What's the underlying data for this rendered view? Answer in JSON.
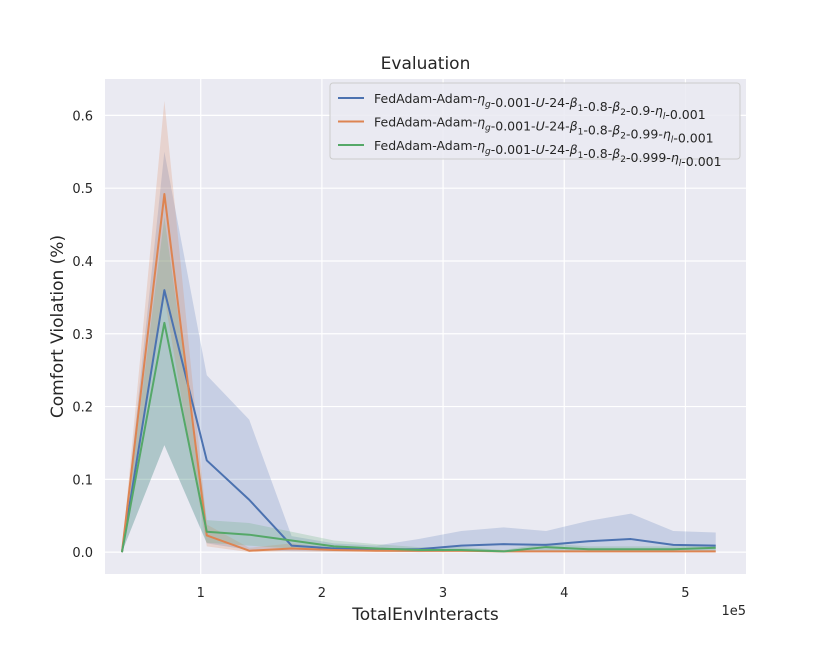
{
  "chart_data": {
    "type": "line",
    "title": "Evaluation",
    "xlabel": "TotalEnvInteracts",
    "ylabel": "Comfort Violation (%)",
    "x_offset_label": "1e5",
    "xlim": [
      0.21,
      5.5
    ],
    "ylim": [
      -0.03,
      0.65
    ],
    "xticks": [
      1,
      2,
      3,
      4,
      5
    ],
    "xtick_labels": [
      "1",
      "2",
      "3",
      "4",
      "5"
    ],
    "yticks": [
      0.0,
      0.1,
      0.2,
      0.3,
      0.4,
      0.5,
      0.6
    ],
    "ytick_labels": [
      "0.0",
      "0.1",
      "0.2",
      "0.3",
      "0.4",
      "0.5",
      "0.6"
    ],
    "grid": true,
    "legend_position": "upper-right",
    "x": [
      0.35,
      0.7,
      1.05,
      1.4,
      1.75,
      2.1,
      2.45,
      2.8,
      3.15,
      3.5,
      3.85,
      4.2,
      4.55,
      4.9,
      5.25
    ],
    "series": [
      {
        "name": "FedAdam-Adam-η_g-0.001-U-24-β_1-0.8-β_2-0.9-η_l-0.001",
        "color": "#4c72b0",
        "values": [
          0.0,
          0.36,
          0.126,
          0.072,
          0.009,
          0.005,
          0.004,
          0.004,
          0.009,
          0.011,
          0.01,
          0.015,
          0.018,
          0.01,
          0.009
        ],
        "upper": [
          0.0,
          0.55,
          0.243,
          0.182,
          0.022,
          0.012,
          0.009,
          0.018,
          0.029,
          0.034,
          0.029,
          0.043,
          0.053,
          0.029,
          0.027
        ],
        "lower": [
          0.0,
          0.147,
          0.012,
          0.003,
          0.001,
          0.001,
          0.001,
          0.0,
          0.001,
          0.001,
          0.001,
          0.001,
          0.001,
          0.001,
          0.001
        ]
      },
      {
        "name": "FedAdam-Adam-η_g-0.001-U-24-β_1-0.8-β_2-0.99-η_l-0.001",
        "color": "#dd8452",
        "values": [
          0.0,
          0.492,
          0.023,
          0.002,
          0.005,
          0.003,
          0.002,
          0.002,
          0.002,
          0.001,
          0.001,
          0.001,
          0.001,
          0.001,
          0.001
        ],
        "upper": [
          0.0,
          0.62,
          0.038,
          0.006,
          0.012,
          0.006,
          0.004,
          0.004,
          0.004,
          0.003,
          0.002,
          0.002,
          0.002,
          0.002,
          0.002
        ],
        "lower": [
          0.0,
          0.35,
          0.008,
          0.0,
          0.001,
          0.0,
          0.0,
          0.0,
          0.0,
          0.0,
          0.0,
          0.0,
          0.0,
          0.0,
          0.0
        ]
      },
      {
        "name": "FedAdam-Adam-η_g-0.001-U-24-β_1-0.8-β_2-0.999-η_l-0.001",
        "color": "#55a868",
        "values": [
          0.0,
          0.315,
          0.028,
          0.024,
          0.016,
          0.008,
          0.005,
          0.003,
          0.003,
          0.001,
          0.007,
          0.004,
          0.004,
          0.004,
          0.006
        ],
        "upper": [
          0.0,
          0.46,
          0.044,
          0.04,
          0.028,
          0.016,
          0.011,
          0.007,
          0.007,
          0.003,
          0.012,
          0.008,
          0.008,
          0.008,
          0.01
        ],
        "lower": [
          0.0,
          0.147,
          0.013,
          0.009,
          0.005,
          0.002,
          0.001,
          0.0,
          0.0,
          0.0,
          0.002,
          0.001,
          0.001,
          0.001,
          0.002
        ]
      }
    ],
    "legend_entries": [
      {
        "prefix": "FedAdam-Adam-",
        "parts": [
          [
            "η",
            "g"
          ],
          "-0.001-",
          [
            "U",
            ""
          ],
          "-24-",
          [
            "β",
            "1"
          ],
          "-0.8-",
          [
            "β",
            "2"
          ],
          "-0.9-",
          [
            "η",
            "l"
          ],
          "-0.001"
        ]
      },
      {
        "prefix": "FedAdam-Adam-",
        "parts": [
          [
            "η",
            "g"
          ],
          "-0.001-",
          [
            "U",
            ""
          ],
          "-24-",
          [
            "β",
            "1"
          ],
          "-0.8-",
          [
            "β",
            "2"
          ],
          "-0.99-",
          [
            "η",
            "l"
          ],
          "-0.001"
        ]
      },
      {
        "prefix": "FedAdam-Adam-",
        "parts": [
          [
            "η",
            "g"
          ],
          "-0.001-",
          [
            "U",
            ""
          ],
          "-24-",
          [
            "β",
            "1"
          ],
          "-0.8-",
          [
            "β",
            "2"
          ],
          "-0.999-",
          [
            "η",
            "l"
          ],
          "-0.001"
        ]
      }
    ],
    "colors": {
      "axes_background": "#eaeaf2",
      "grid": "#ffffff",
      "text": "#262626"
    }
  }
}
